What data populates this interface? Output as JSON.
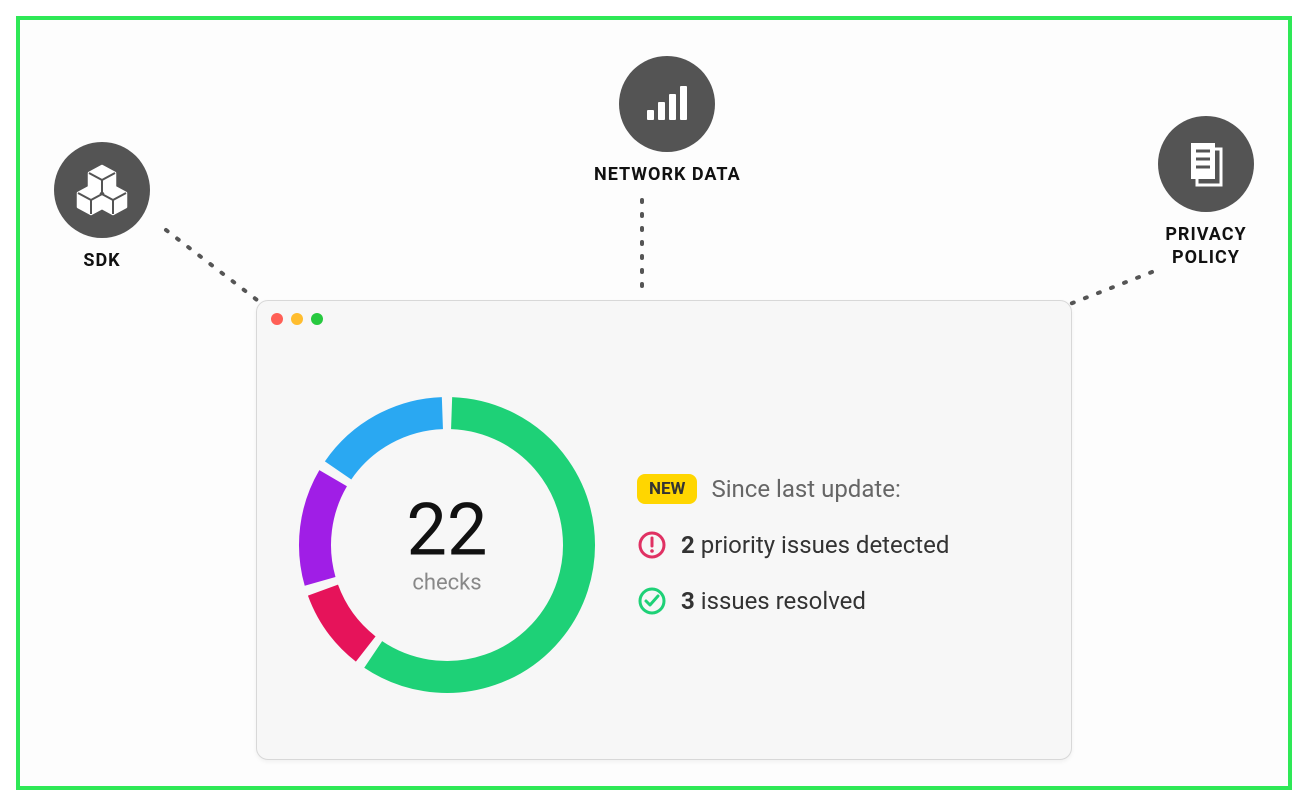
{
  "frame": {
    "border_color": "#2ee856",
    "background": "#fdfdfd"
  },
  "nodes": {
    "sdk": {
      "label": "SDK",
      "icon_bg": "#545454",
      "icon_fg": "#ffffff"
    },
    "network": {
      "label": "NETWORK DATA",
      "icon_bg": "#545454",
      "icon_fg": "#ffffff"
    },
    "privacy": {
      "label_line1": "PRIVACY",
      "label_line2": "POLICY",
      "icon_bg": "#545454",
      "icon_fg": "#ffffff"
    }
  },
  "dashed_line": {
    "color": "#555555",
    "dash": "8 8",
    "width": 4
  },
  "window": {
    "background": "#f7f7f7",
    "border": "#d8d8d8",
    "traffic_lights": [
      "#ff5f56",
      "#ffbd2e",
      "#27c93f"
    ]
  },
  "donut": {
    "type": "donut",
    "count": "22",
    "sublabel": "checks",
    "count_color": "#111111",
    "sublabel_color": "#888888",
    "count_fontsize": 72,
    "sublabel_fontsize": 22,
    "size": 300,
    "stroke_width": 32,
    "gap_deg": 4,
    "segments": [
      {
        "name": "green",
        "color": "#1ed177",
        "value": 60
      },
      {
        "name": "pink",
        "color": "#e6135a",
        "value": 10
      },
      {
        "name": "purple",
        "color": "#a01ee6",
        "value": 14
      },
      {
        "name": "blue",
        "color": "#2aa8f2",
        "value": 16
      }
    ]
  },
  "details": {
    "badge_text": "NEW",
    "badge_bg": "#ffd600",
    "since_text": "Since last update:",
    "priority_count": "2",
    "priority_text": "priority issues detected",
    "priority_icon_color": "#e03163",
    "resolved_count": "3",
    "resolved_text": "issues resolved",
    "resolved_icon_color": "#1ed177",
    "text_color": "#333333",
    "subtext_color": "#666666",
    "fontsize": 24
  }
}
